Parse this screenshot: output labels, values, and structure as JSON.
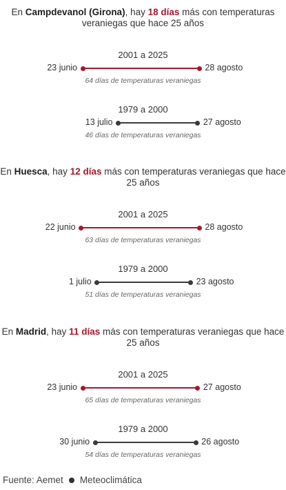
{
  "colors": {
    "recent": "#a5182f",
    "old": "#3a3a3a"
  },
  "chart_data": {
    "type": "range",
    "caption_suffix": "días de temperaturas veraniegas",
    "sections": [
      {
        "headline": {
          "pre": "En ",
          "place": "Campdevanol (Girona)",
          "mid": ", hay ",
          "days": "18 días",
          "post": " más con temperaturas veraniegas que hace 25 años"
        },
        "periods": [
          {
            "label": "2001 a 2025",
            "start": "23 junio",
            "end": "28 agosto",
            "start_doy": 174,
            "end_doy": 240,
            "days": 64,
            "style": "recent"
          },
          {
            "label": "1979 a 2000",
            "start": "13 julio",
            "end": "27 agosto",
            "start_doy": 194,
            "end_doy": 239,
            "days": 46,
            "style": "old"
          }
        ]
      },
      {
        "headline": {
          "pre": "En ",
          "place": "Huesca",
          "mid": ", hay ",
          "days": "12 días",
          "post": " más con temperaturas veraniegas que hace 25 años"
        },
        "periods": [
          {
            "label": "2001 a 2025",
            "start": "22 junio",
            "end": "28 agosto",
            "start_doy": 173,
            "end_doy": 240,
            "days": 63,
            "style": "recent"
          },
          {
            "label": "1979 a 2000",
            "start": "1 julio",
            "end": "23 agosto",
            "start_doy": 182,
            "end_doy": 235,
            "days": 51,
            "style": "old"
          }
        ]
      },
      {
        "headline": {
          "pre": "En ",
          "place": "Madrid",
          "mid": ", hay ",
          "days": "11 días",
          "post": " más con temperaturas veraniegas que hace 25 años"
        },
        "periods": [
          {
            "label": "2001 a 2025",
            "start": "23 junio",
            "end": "27 agosto",
            "start_doy": 174,
            "end_doy": 239,
            "days": 65,
            "style": "recent"
          },
          {
            "label": "1979 a 2000",
            "start": "30 junio",
            "end": "26 agosto",
            "start_doy": 181,
            "end_doy": 238,
            "days": 54,
            "style": "old"
          }
        ]
      }
    ]
  },
  "footer": {
    "source": "Fuente: Aemet",
    "credit": "Meteoclimática"
  }
}
